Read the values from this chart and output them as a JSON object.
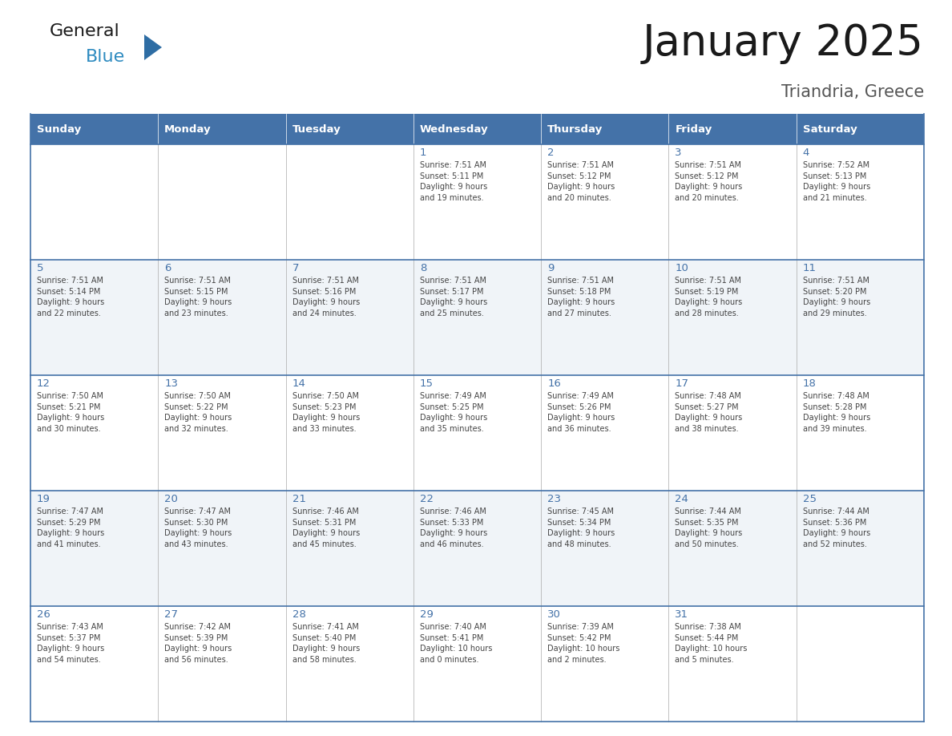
{
  "title": "January 2025",
  "subtitle": "Triandria, Greece",
  "days_of_week": [
    "Sunday",
    "Monday",
    "Tuesday",
    "Wednesday",
    "Thursday",
    "Friday",
    "Saturday"
  ],
  "header_bg": "#4472A8",
  "header_text_color": "#FFFFFF",
  "cell_bg": "#FFFFFF",
  "row_border_color": "#4472A8",
  "cell_border_color": "#AAAAAA",
  "day_num_color": "#4472A8",
  "text_color": "#444444",
  "logo_general_color": "#1a1a1a",
  "logo_blue_color": "#2E8BC0",
  "logo_triangle_color": "#2E6DA4",
  "title_color": "#1a1a1a",
  "subtitle_color": "#555555",
  "calendar_data": [
    [
      {
        "day": null,
        "info": null
      },
      {
        "day": null,
        "info": null
      },
      {
        "day": null,
        "info": null
      },
      {
        "day": 1,
        "info": "Sunrise: 7:51 AM\nSunset: 5:11 PM\nDaylight: 9 hours\nand 19 minutes."
      },
      {
        "day": 2,
        "info": "Sunrise: 7:51 AM\nSunset: 5:12 PM\nDaylight: 9 hours\nand 20 minutes."
      },
      {
        "day": 3,
        "info": "Sunrise: 7:51 AM\nSunset: 5:12 PM\nDaylight: 9 hours\nand 20 minutes."
      },
      {
        "day": 4,
        "info": "Sunrise: 7:52 AM\nSunset: 5:13 PM\nDaylight: 9 hours\nand 21 minutes."
      }
    ],
    [
      {
        "day": 5,
        "info": "Sunrise: 7:51 AM\nSunset: 5:14 PM\nDaylight: 9 hours\nand 22 minutes."
      },
      {
        "day": 6,
        "info": "Sunrise: 7:51 AM\nSunset: 5:15 PM\nDaylight: 9 hours\nand 23 minutes."
      },
      {
        "day": 7,
        "info": "Sunrise: 7:51 AM\nSunset: 5:16 PM\nDaylight: 9 hours\nand 24 minutes."
      },
      {
        "day": 8,
        "info": "Sunrise: 7:51 AM\nSunset: 5:17 PM\nDaylight: 9 hours\nand 25 minutes."
      },
      {
        "day": 9,
        "info": "Sunrise: 7:51 AM\nSunset: 5:18 PM\nDaylight: 9 hours\nand 27 minutes."
      },
      {
        "day": 10,
        "info": "Sunrise: 7:51 AM\nSunset: 5:19 PM\nDaylight: 9 hours\nand 28 minutes."
      },
      {
        "day": 11,
        "info": "Sunrise: 7:51 AM\nSunset: 5:20 PM\nDaylight: 9 hours\nand 29 minutes."
      }
    ],
    [
      {
        "day": 12,
        "info": "Sunrise: 7:50 AM\nSunset: 5:21 PM\nDaylight: 9 hours\nand 30 minutes."
      },
      {
        "day": 13,
        "info": "Sunrise: 7:50 AM\nSunset: 5:22 PM\nDaylight: 9 hours\nand 32 minutes."
      },
      {
        "day": 14,
        "info": "Sunrise: 7:50 AM\nSunset: 5:23 PM\nDaylight: 9 hours\nand 33 minutes."
      },
      {
        "day": 15,
        "info": "Sunrise: 7:49 AM\nSunset: 5:25 PM\nDaylight: 9 hours\nand 35 minutes."
      },
      {
        "day": 16,
        "info": "Sunrise: 7:49 AM\nSunset: 5:26 PM\nDaylight: 9 hours\nand 36 minutes."
      },
      {
        "day": 17,
        "info": "Sunrise: 7:48 AM\nSunset: 5:27 PM\nDaylight: 9 hours\nand 38 minutes."
      },
      {
        "day": 18,
        "info": "Sunrise: 7:48 AM\nSunset: 5:28 PM\nDaylight: 9 hours\nand 39 minutes."
      }
    ],
    [
      {
        "day": 19,
        "info": "Sunrise: 7:47 AM\nSunset: 5:29 PM\nDaylight: 9 hours\nand 41 minutes."
      },
      {
        "day": 20,
        "info": "Sunrise: 7:47 AM\nSunset: 5:30 PM\nDaylight: 9 hours\nand 43 minutes."
      },
      {
        "day": 21,
        "info": "Sunrise: 7:46 AM\nSunset: 5:31 PM\nDaylight: 9 hours\nand 45 minutes."
      },
      {
        "day": 22,
        "info": "Sunrise: 7:46 AM\nSunset: 5:33 PM\nDaylight: 9 hours\nand 46 minutes."
      },
      {
        "day": 23,
        "info": "Sunrise: 7:45 AM\nSunset: 5:34 PM\nDaylight: 9 hours\nand 48 minutes."
      },
      {
        "day": 24,
        "info": "Sunrise: 7:44 AM\nSunset: 5:35 PM\nDaylight: 9 hours\nand 50 minutes."
      },
      {
        "day": 25,
        "info": "Sunrise: 7:44 AM\nSunset: 5:36 PM\nDaylight: 9 hours\nand 52 minutes."
      }
    ],
    [
      {
        "day": 26,
        "info": "Sunrise: 7:43 AM\nSunset: 5:37 PM\nDaylight: 9 hours\nand 54 minutes."
      },
      {
        "day": 27,
        "info": "Sunrise: 7:42 AM\nSunset: 5:39 PM\nDaylight: 9 hours\nand 56 minutes."
      },
      {
        "day": 28,
        "info": "Sunrise: 7:41 AM\nSunset: 5:40 PM\nDaylight: 9 hours\nand 58 minutes."
      },
      {
        "day": 29,
        "info": "Sunrise: 7:40 AM\nSunset: 5:41 PM\nDaylight: 10 hours\nand 0 minutes."
      },
      {
        "day": 30,
        "info": "Sunrise: 7:39 AM\nSunset: 5:42 PM\nDaylight: 10 hours\nand 2 minutes."
      },
      {
        "day": 31,
        "info": "Sunrise: 7:38 AM\nSunset: 5:44 PM\nDaylight: 10 hours\nand 5 minutes."
      },
      {
        "day": null,
        "info": null
      }
    ]
  ],
  "figwidth": 11.88,
  "figheight": 9.18,
  "dpi": 100
}
